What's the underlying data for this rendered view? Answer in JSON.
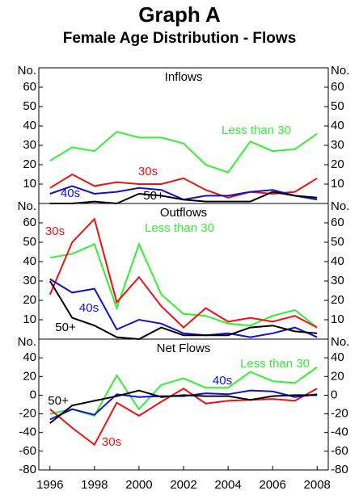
{
  "title": "Graph A",
  "subtitle": "Female Age Distribution - Flows",
  "chart_data": [
    {
      "type": "line",
      "title": "Inflows",
      "x": [
        1996,
        1997,
        1998,
        1999,
        2000,
        2001,
        2002,
        2003,
        2004,
        2005,
        2006,
        2007,
        2008
      ],
      "xlim": [
        1995.5,
        2008.5
      ],
      "ylim": [
        0,
        70
      ],
      "yticks": [
        10,
        20,
        30,
        40,
        50,
        60,
        {
          "value": 70,
          "label": "No."
        }
      ],
      "series": [
        {
          "name": "Less than 30",
          "color": "#33ee33",
          "values": [
            22,
            29,
            27,
            37,
            34,
            34,
            31,
            20,
            16,
            32,
            27,
            28,
            36
          ]
        },
        {
          "name": "30s",
          "color": "#ee1111",
          "values": [
            8,
            15,
            9,
            11,
            10,
            10,
            13,
            7,
            3,
            6,
            5,
            6,
            13
          ]
        },
        {
          "name": "40s",
          "color": "#1111cc",
          "values": [
            5,
            9,
            5,
            6,
            8,
            7,
            2,
            4,
            4,
            6,
            7,
            4,
            2
          ]
        },
        {
          "name": "50+",
          "color": "#000000",
          "values": [
            0,
            0,
            1,
            0,
            5,
            4,
            2,
            1,
            1,
            1,
            6,
            4,
            3
          ]
        }
      ]
    },
    {
      "type": "line",
      "title": "Outflows",
      "x": [
        1996,
        1997,
        1998,
        1999,
        2000,
        2001,
        2002,
        2003,
        2004,
        2005,
        2006,
        2007,
        2008
      ],
      "xlim": [
        1995.5,
        2008.5
      ],
      "ylim": [
        0,
        70
      ],
      "yticks": [
        10,
        20,
        30,
        40,
        50,
        60,
        {
          "value": 70,
          "label": "No."
        }
      ],
      "series": [
        {
          "name": "Less than 30",
          "color": "#33ee33",
          "values": [
            42,
            44,
            49,
            16,
            49,
            23,
            13,
            12,
            8,
            7,
            12,
            15,
            6
          ]
        },
        {
          "name": "30s",
          "color": "#ee1111",
          "values": [
            23,
            50,
            62,
            19,
            32,
            17,
            6,
            16,
            9,
            11,
            9,
            12,
            6
          ]
        },
        {
          "name": "40s",
          "color": "#1111cc",
          "values": [
            31,
            24,
            26,
            5,
            10,
            8,
            3,
            2,
            3,
            1,
            3,
            6,
            1
          ]
        },
        {
          "name": "50+",
          "color": "#000000",
          "values": [
            30,
            11,
            7,
            1,
            0,
            6,
            2,
            2,
            2,
            6,
            7,
            4,
            3
          ]
        }
      ]
    },
    {
      "type": "line",
      "title": "Net Flows",
      "x": [
        1996,
        1997,
        1998,
        1999,
        2000,
        2001,
        2002,
        2003,
        2004,
        2005,
        2006,
        2007,
        2008
      ],
      "xlim": [
        1995.5,
        2008.5
      ],
      "xticks": [
        1996,
        1998,
        2000,
        2002,
        2004,
        2006,
        2008
      ],
      "ylim": [
        -80,
        60
      ],
      "yticks": [
        -80,
        -60,
        -40,
        -20,
        0,
        20,
        40,
        {
          "value": 60,
          "label": "No."
        }
      ],
      "series": [
        {
          "name": "Less than 30",
          "color": "#33ee33",
          "values": [
            -20,
            -15,
            -22,
            21,
            -15,
            11,
            18,
            8,
            8,
            25,
            15,
            13,
            30
          ]
        },
        {
          "name": "30s",
          "color": "#ee1111",
          "values": [
            -15,
            -35,
            -53,
            -8,
            -22,
            -7,
            7,
            -9,
            -6,
            -5,
            -4,
            -6,
            7
          ]
        },
        {
          "name": "40s",
          "color": "#1111cc",
          "values": [
            -26,
            -15,
            -21,
            1,
            -2,
            -1,
            -1,
            2,
            1,
            5,
            4,
            -2,
            1
          ]
        },
        {
          "name": "50+",
          "color": "#000000",
          "values": [
            -30,
            -11,
            -6,
            -1,
            5,
            -2,
            0,
            -1,
            -1,
            -5,
            -1,
            0,
            0
          ]
        }
      ]
    }
  ]
}
